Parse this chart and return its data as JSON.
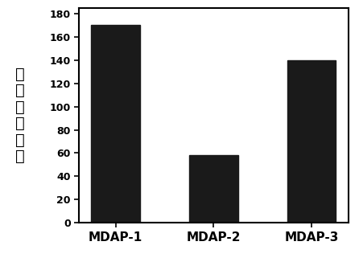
{
  "categories": [
    "MDAP-1",
    "MDAP-2",
    "MDAP-3"
  ],
  "values": [
    170,
    58,
    140
  ],
  "bar_color": "#1a1a1a",
  "ylabel_chars": [
    "荞",
    "光",
    "增",
    "强",
    "倍",
    "数"
  ],
  "ylim": [
    0,
    185
  ],
  "yticks": [
    0,
    20,
    40,
    60,
    80,
    100,
    120,
    140,
    160,
    180
  ],
  "bar_width": 0.5,
  "background_color": "#ffffff",
  "tick_fontsize": 9,
  "label_fontsize": 14,
  "xlabel_fontsize": 11
}
